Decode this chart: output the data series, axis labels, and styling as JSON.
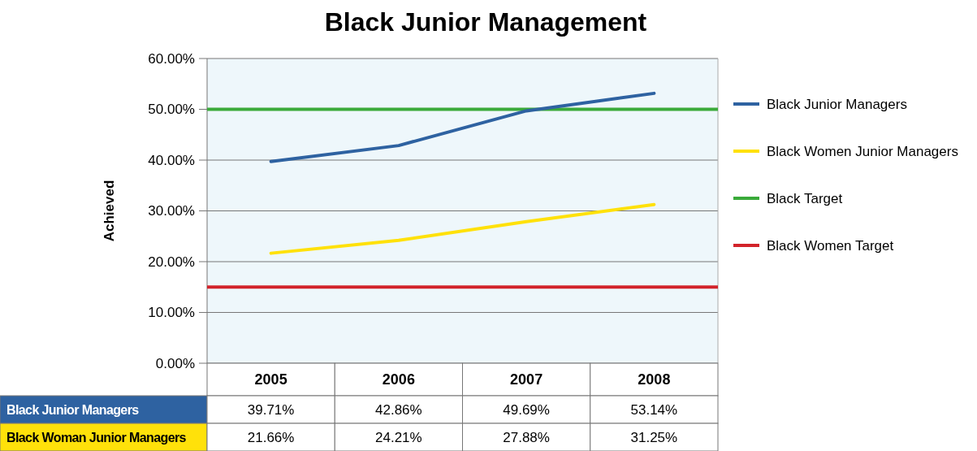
{
  "chart_data": {
    "type": "line",
    "title": "Black Junior Management",
    "ylabel": "Achieved",
    "categories": [
      "2005",
      "2006",
      "2007",
      "2008"
    ],
    "series": [
      {
        "name": "Black Junior Managers",
        "color": "#2e62a1",
        "values": [
          39.71,
          42.86,
          49.69,
          53.14
        ],
        "value_labels": [
          "39.71%",
          "42.86%",
          "49.69%",
          "53.14%"
        ]
      },
      {
        "name": "Black Women Junior Managers",
        "color": "#ffe10a",
        "values": [
          21.66,
          24.21,
          27.88,
          31.25
        ],
        "value_labels": [
          "21.66%",
          "24.21%",
          "27.88%",
          "31.25%"
        ]
      }
    ],
    "ref_lines": [
      {
        "axis": "y",
        "value": 50,
        "label": "Black Target",
        "color": "#3aaa3a"
      },
      {
        "axis": "y",
        "value": 15,
        "label": "Black Women Target",
        "color": "#d2232a"
      }
    ],
    "annotations": [
      "Black Woman Junior Managers"
    ],
    "ylim": [
      0,
      60
    ],
    "yticks": [
      {
        "value": 0,
        "label": "0.00%"
      },
      {
        "value": 10,
        "label": "10.00%"
      },
      {
        "value": 20,
        "label": "20.00%"
      },
      {
        "value": 30,
        "label": "30.00%"
      },
      {
        "value": 40,
        "label": "40.00%"
      },
      {
        "value": 50,
        "label": "50.00%"
      },
      {
        "value": 60,
        "label": "60.00%"
      }
    ],
    "grid": "y",
    "legend": "right",
    "line_style": "solid"
  }
}
